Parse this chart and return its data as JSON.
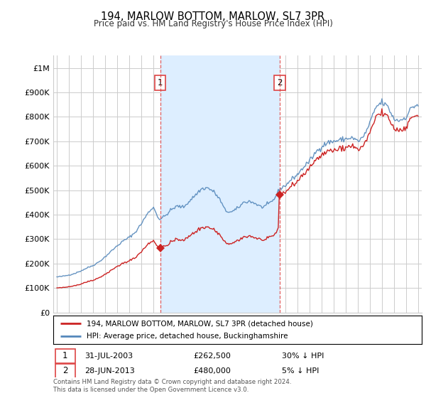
{
  "title": "194, MARLOW BOTTOM, MARLOW, SL7 3PR",
  "subtitle": "Price paid vs. HM Land Registry's House Price Index (HPI)",
  "legend_line1": "194, MARLOW BOTTOM, MARLOW, SL7 3PR (detached house)",
  "legend_line2": "HPI: Average price, detached house, Buckinghamshire",
  "sale1_date": "31-JUL-2003",
  "sale1_price": "£262,500",
  "sale1_hpi": "30% ↓ HPI",
  "sale1_year": 2003.58,
  "sale1_value": 262500,
  "sale2_date": "28-JUN-2013",
  "sale2_price": "£480,000",
  "sale2_hpi": "5% ↓ HPI",
  "sale2_year": 2013.5,
  "sale2_value": 480000,
  "footer": "Contains HM Land Registry data © Crown copyright and database right 2024.\nThis data is licensed under the Open Government Licence v3.0.",
  "hpi_color": "#5588bb",
  "price_color": "#cc2222",
  "dashed_color": "#dd4444",
  "shade_color": "#ddeeff",
  "background_color": "#ffffff",
  "grid_color": "#cccccc",
  "ylim_max": 1050000,
  "xlim_start": 1994.7,
  "xlim_end": 2025.3,
  "yticks": [
    0,
    100000,
    200000,
    300000,
    400000,
    500000,
    600000,
    700000,
    800000,
    900000,
    1000000
  ],
  "yticklabels": [
    "£0",
    "£100K",
    "£200K",
    "£300K",
    "£400K",
    "£500K",
    "£600K",
    "£700K",
    "£800K",
    "£900K",
    "£1M"
  ]
}
